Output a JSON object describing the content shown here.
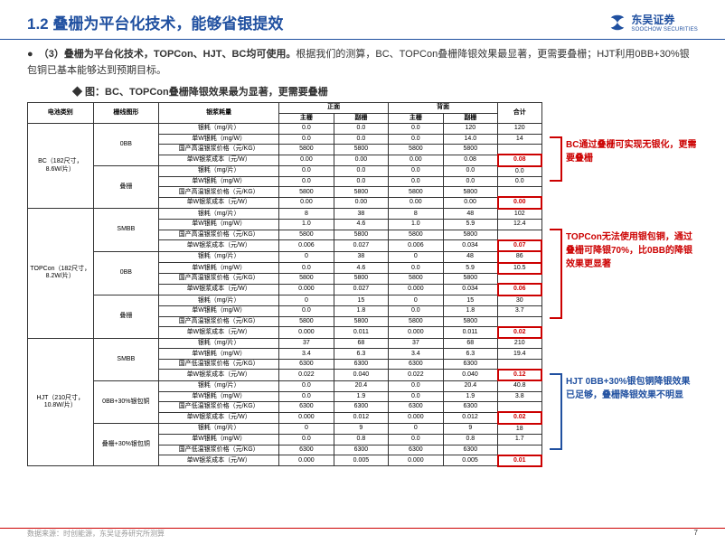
{
  "header": {
    "title": "1.2 叠栅为平台化技术，能够省银提效",
    "logo_cn": "东吴证券",
    "logo_en": "SOOCHOW SECURITIES"
  },
  "bullet": "（3）叠栅为平台化技术，TOPCon、HJT、BC均可使用。根据我们的测算，BC、TOPCon叠栅降银效果最显著，更需要叠栅；HJT利用0BB+30%银包铜已基本能够达到预期目标。",
  "bullet_bold": "（3）叠栅为平台化技术，TOPCon、HJT、BC均可使用。",
  "bullet_rest": "根据我们的测算，BC、TOPCon叠栅降银效果最显著，更需要叠栅；HJT利用0BB+30%银包铜已基本能够达到预期目标。",
  "chart_title": "◆ 图：BC、TOPCon叠栅降银效果最为显著，更需要叠栅",
  "th": {
    "cat": "电池类别",
    "pat": "栅线图形",
    "met": "银浆耗量",
    "front": "正面",
    "back": "背面",
    "main": "主栅",
    "sub": "副栅",
    "sum": "合计"
  },
  "metrics": [
    "银耗（mg/片）",
    "单W银耗（mg/W）",
    "国产高温银浆价格（元/KG）",
    "单W银浆成本（元/W）"
  ],
  "metrics_low": [
    "银耗（mg/片）",
    "单W银耗（mg/W）",
    "国产低温银浆价格（元/KG）",
    "单W银浆成本（元/W）"
  ],
  "cats": {
    "bc": {
      "label": "BC（182尺寸，8.6W/片）",
      "rows": [
        {
          "p": "0BB",
          "d": [
            [
              "0.0",
              "0.0",
              "0.0",
              "120",
              "120"
            ],
            [
              "0.0",
              "0.0",
              "0.0",
              "14.0",
              "14"
            ],
            [
              "5800",
              "5800",
              "5800",
              "5800",
              ""
            ],
            [
              "0.00",
              "0.00",
              "0.00",
              "0.08",
              "0.08"
            ]
          ],
          "hr": 3
        },
        {
          "p": "叠栅",
          "d": [
            [
              "0.0",
              "0.0",
              "0.0",
              "0.0",
              "0.0"
            ],
            [
              "0.0",
              "0.0",
              "0.0",
              "0.0",
              "0.0"
            ],
            [
              "5800",
              "5800",
              "5800",
              "5800",
              ""
            ],
            [
              "0.00",
              "0.00",
              "0.00",
              "0.00",
              "0.00"
            ]
          ],
          "hr": 3
        }
      ]
    },
    "topcon": {
      "label": "TOPCon（182尺寸，8.2W/片）",
      "rows": [
        {
          "p": "SMBB",
          "d": [
            [
              "8",
              "38",
              "8",
              "48",
              "102"
            ],
            [
              "1.0",
              "4.6",
              "1.0",
              "5.9",
              "12.4"
            ],
            [
              "5800",
              "5800",
              "5800",
              "5800",
              ""
            ],
            [
              "0.006",
              "0.027",
              "0.006",
              "0.034",
              "0.07"
            ]
          ],
          "hr": 3
        },
        {
          "p": "0BB",
          "d": [
            [
              "0",
              "38",
              "0",
              "48",
              "86"
            ],
            [
              "0.0",
              "4.6",
              "0.0",
              "5.9",
              "10.5"
            ],
            [
              "5800",
              "5800",
              "5800",
              "5800",
              ""
            ],
            [
              "0.000",
              "0.027",
              "0.000",
              "0.034",
              "0.06"
            ]
          ],
          "hr": 3,
          "hb": true
        },
        {
          "p": "叠栅",
          "d": [
            [
              "0",
              "15",
              "0",
              "15",
              "30"
            ],
            [
              "0.0",
              "1.8",
              "0.0",
              "1.8",
              "3.7"
            ],
            [
              "5800",
              "5800",
              "5800",
              "5800",
              ""
            ],
            [
              "0.000",
              "0.011",
              "0.000",
              "0.011",
              "0.02"
            ]
          ],
          "hr": 3
        }
      ]
    },
    "hjt": {
      "label": "HJT（210尺寸，10.8W/片）",
      "rows": [
        {
          "p": "SMBB",
          "d": [
            [
              "37",
              "68",
              "37",
              "68",
              "210"
            ],
            [
              "3.4",
              "6.3",
              "3.4",
              "6.3",
              "19.4"
            ],
            [
              "6300",
              "6300",
              "6300",
              "6300",
              ""
            ],
            [
              "0.022",
              "0.040",
              "0.022",
              "0.040",
              "0.12"
            ]
          ],
          "hr": 3
        },
        {
          "p": "0BB+30%银包铜",
          "d": [
            [
              "0.0",
              "20.4",
              "0.0",
              "20.4",
              "40.8"
            ],
            [
              "0.0",
              "1.9",
              "0.0",
              "1.9",
              "3.8"
            ],
            [
              "6300",
              "6300",
              "6300",
              "6300",
              ""
            ],
            [
              "0.000",
              "0.012",
              "0.000",
              "0.012",
              "0.02"
            ]
          ],
          "hr": 3
        },
        {
          "p": "叠栅+30%银包铜",
          "d": [
            [
              "0",
              "9",
              "0",
              "9",
              "18"
            ],
            [
              "0.0",
              "0.8",
              "0.0",
              "0.8",
              "1.7"
            ],
            [
              "6300",
              "6300",
              "6300",
              "6300",
              ""
            ],
            [
              "0.000",
              "0.005",
              "0.000",
              "0.005",
              "0.01"
            ]
          ],
          "hr": 3
        }
      ]
    }
  },
  "annos": {
    "a1": "BC通过叠栅可实现无银化，更需要叠栅",
    "a2": "TOPCon无法使用银包铜，通过叠栅可降银70%，比0BB的降银效果更显著",
    "a3": "HJT 0BB+30%银包铜降银效果已足够，叠栅降银效果不明显"
  },
  "footer": {
    "src": "数据来源：时创能源，东吴证券研究所测算",
    "page": "7"
  }
}
